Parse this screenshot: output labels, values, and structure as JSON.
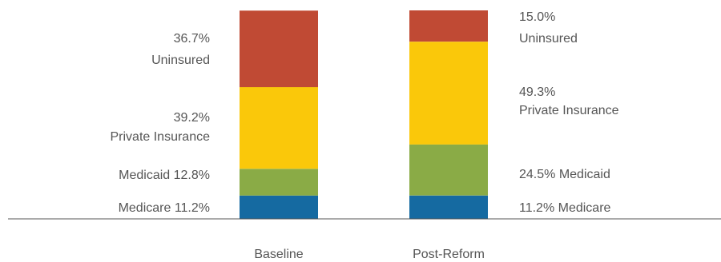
{
  "chart_data": {
    "type": "bar",
    "stacked": true,
    "orientation": "vertical",
    "categories": [
      "Baseline",
      "Post-Reform"
    ],
    "series": [
      {
        "key": "medicare",
        "values": [
          11.2,
          11.2
        ],
        "color": "#156aa1"
      },
      {
        "key": "medicaid",
        "values": [
          12.8,
          24.5
        ],
        "color": "#8aab46"
      },
      {
        "key": "private",
        "values": [
          39.2,
          49.3
        ],
        "color": "#fac80a"
      },
      {
        "key": "uninsured",
        "values": [
          36.7,
          15.0
        ],
        "color": "#c04a34"
      }
    ],
    "ylim": [
      0,
      100
    ],
    "grid": false,
    "legend": "none",
    "labels": {
      "baseline": {
        "uninsured_value": "36.7%",
        "uninsured_name": "Uninsured",
        "private_value": "39.2%",
        "private_name": "Private Insurance",
        "medicaid": "Medicaid 12.8%",
        "medicare": "Medicare 11.2%"
      },
      "post_reform": {
        "uninsured_value": "15.0%",
        "uninsured_name": "Uninsured",
        "private_value": "49.3%",
        "private_name": "Private Insurance",
        "medicaid": "24.5% Medicaid",
        "medicare": "11.2% Medicare"
      }
    }
  }
}
